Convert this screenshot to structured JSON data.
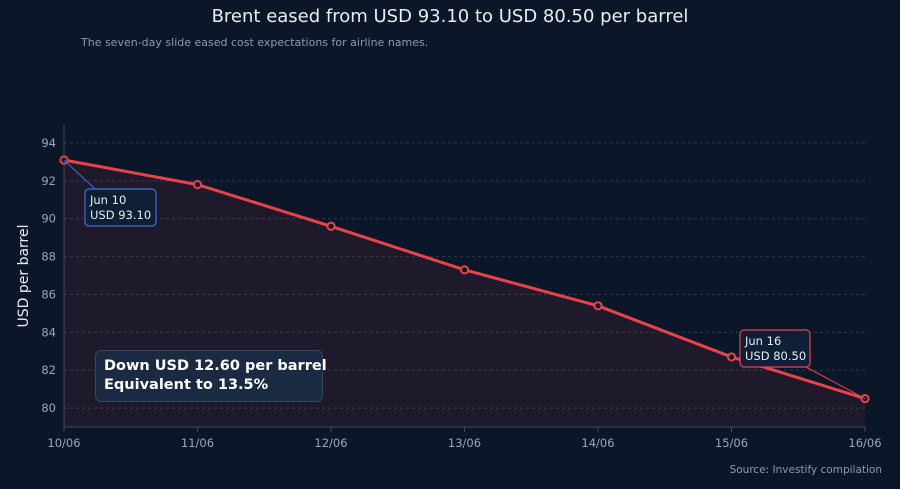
{
  "header": {
    "title": "Brent eased from USD 93.10 to USD 80.50 per barrel",
    "subtitle": "The seven-day slide eased cost expectations for airline names.",
    "source": "Source: Investify compilation"
  },
  "callout": {
    "line1": "Down USD 12.60 per barrel",
    "line2": "Equivalent to 13.5%"
  },
  "chart_data": {
    "type": "line",
    "title": "Brent eased from USD 93.10 to USD 80.50 per barrel",
    "xlabel": "",
    "ylabel": "USD per barrel",
    "categories": [
      "10/06",
      "11/06",
      "12/06",
      "13/06",
      "14/06",
      "15/06",
      "16/06"
    ],
    "series": [
      {
        "values": [
          93.1,
          91.8,
          89.6,
          87.3,
          85.4,
          82.7,
          80.5
        ],
        "color": "#e8434a"
      }
    ],
    "ylim": [
      79,
      95
    ],
    "yticks": [
      80,
      82,
      84,
      86,
      88,
      90,
      92,
      94
    ],
    "grid": true,
    "annotations": [
      {
        "index": 0,
        "line1": "Jun 10",
        "line2": "USD 93.10",
        "color": "#3d6fe0"
      },
      {
        "index": 6,
        "line1": "Jun 16",
        "line2": "USD 80.50",
        "color": "#e8434a"
      }
    ]
  }
}
